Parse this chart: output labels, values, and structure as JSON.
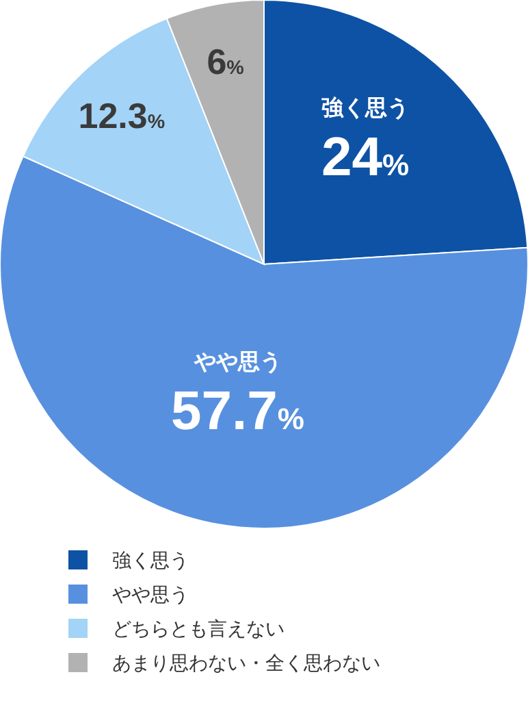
{
  "chart_data": {
    "type": "pie",
    "categories": [
      "強く思う",
      "やや思う",
      "どちらとも言えない",
      "あまり思わない・全く思わない"
    ],
    "values": [
      24,
      57.7,
      12.3,
      6
    ],
    "colors": [
      "#0d52a5",
      "#5890e0",
      "#a3d3f6",
      "#b2b2b2"
    ],
    "value_labels": [
      "24%",
      "57.7%",
      "12.3%",
      "6%"
    ],
    "legend": "bottom left"
  }
}
